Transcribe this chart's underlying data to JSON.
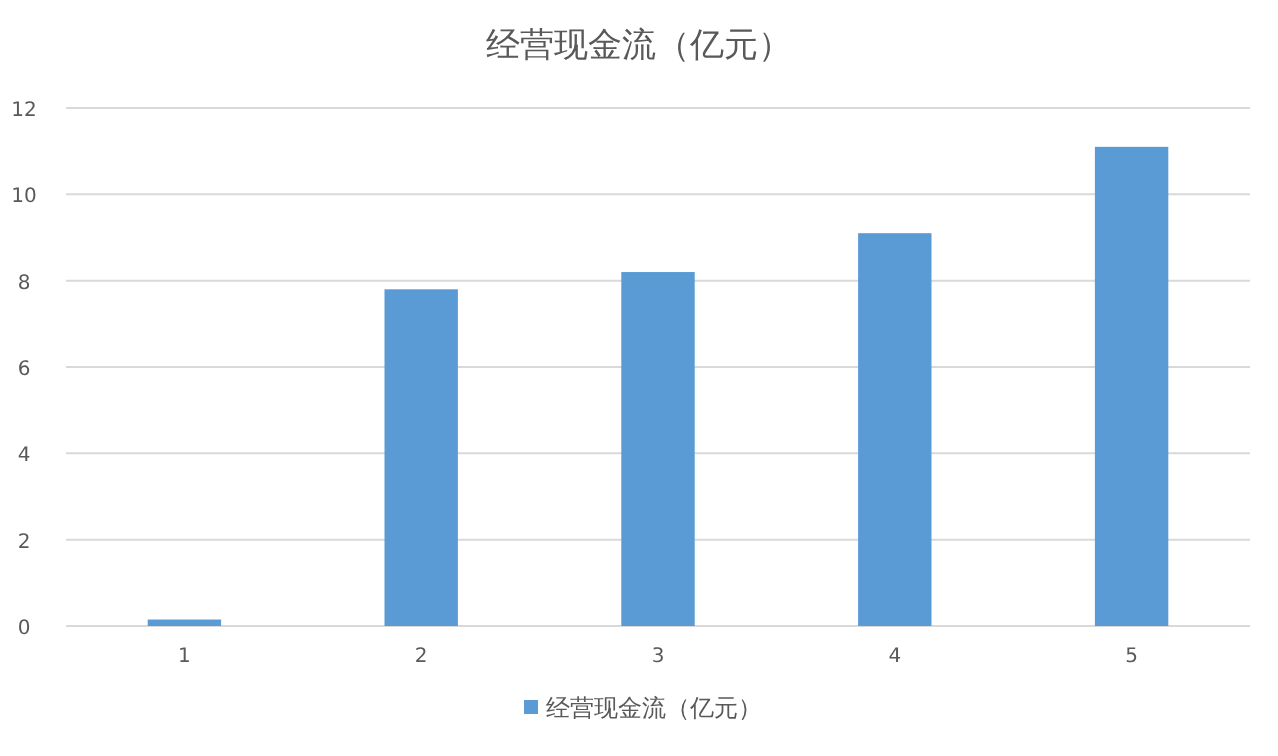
{
  "chart_data": {
    "type": "bar",
    "title": "经营现金流（亿元）",
    "categories": [
      "1",
      "2",
      "3",
      "4",
      "5"
    ],
    "series": [
      {
        "name": "经营现金流（亿元）",
        "color": "#5b9bd5",
        "values": [
          0.15,
          7.8,
          8.2,
          9.1,
          11.1
        ]
      }
    ],
    "ylim": [
      0,
      12
    ],
    "yticks": [
      0,
      2,
      4,
      6,
      8,
      10,
      12
    ],
    "grid": "y",
    "legend": "bottom"
  }
}
